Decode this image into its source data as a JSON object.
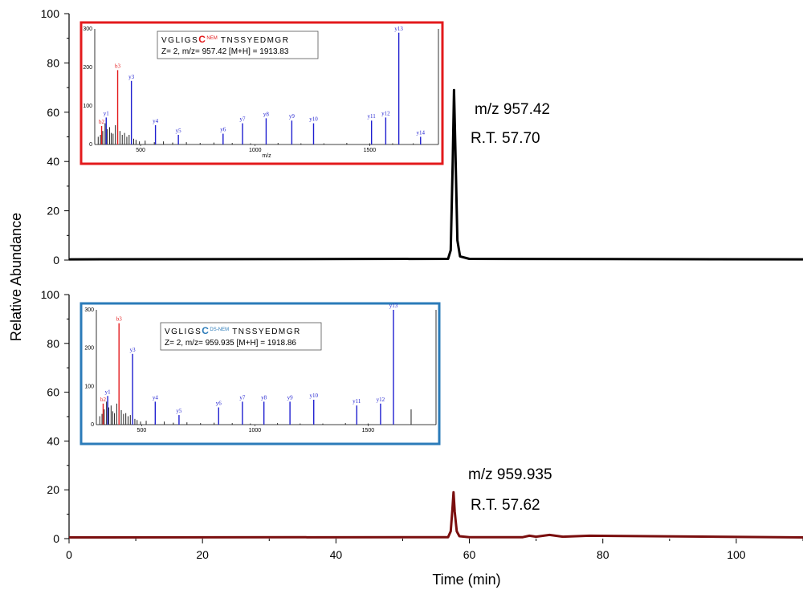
{
  "chart_data": [
    {
      "type": "line",
      "ylabel": "Relative Abundance",
      "xlabel": "",
      "xlim": [
        0,
        110
      ],
      "ylim": [
        0,
        100
      ],
      "yticks": [
        "0",
        "20",
        "40",
        "60",
        "80",
        "100"
      ],
      "xticks": [],
      "grid": false,
      "series": [
        {
          "color": "#000000",
          "x": [
            0,
            56.8,
            57.2,
            57.5,
            57.7,
            57.9,
            58.2,
            58.6,
            60,
            110
          ],
          "y": [
            0.3,
            0.5,
            4,
            40,
            69,
            45,
            8,
            1.5,
            0.5,
            0.3
          ]
        }
      ],
      "annotations": [
        "m/z 957.42",
        "R.T. 57.70"
      ],
      "inset": {
        "type": "bar",
        "frame_color": "#e31a1c",
        "peptide": "VGLIGS",
        "modified_residue": "C",
        "modification": "NEM",
        "peptide_rest": "TNSSYEDMGR",
        "info": "Z= 2, m/z= 957.42 [M+H] = 1913.83",
        "xlabel": "m/z",
        "yticks": [
          "0",
          "100",
          "200",
          "300"
        ],
        "xticks": [
          "500",
          "1000",
          "1500"
        ],
        "ylim": [
          0,
          300
        ],
        "xlim": [
          300,
          1800
        ],
        "ions": [
          {
            "label": "b2",
            "mz": 330,
            "intensity": 48,
            "color": "#e31a1c"
          },
          {
            "label": "y1",
            "mz": 350,
            "intensity": 70,
            "color": "#1f1fd0"
          },
          {
            "label": "b3",
            "mz": 400,
            "intensity": 193,
            "color": "#e31a1c"
          },
          {
            "label": "y3",
            "mz": 460,
            "intensity": 165,
            "color": "#1f1fd0"
          },
          {
            "label": "y4",
            "mz": 565,
            "intensity": 50,
            "color": "#1f1fd0"
          },
          {
            "label": "y5",
            "mz": 665,
            "intensity": 25,
            "color": "#1f1fd0"
          },
          {
            "label": "y6",
            "mz": 860,
            "intensity": 28,
            "color": "#1f1fd0"
          },
          {
            "label": "y7",
            "mz": 945,
            "intensity": 55,
            "color": "#1f1fd0"
          },
          {
            "label": "y8",
            "mz": 1048,
            "intensity": 68,
            "color": "#1f1fd0"
          },
          {
            "label": "y9",
            "mz": 1160,
            "intensity": 62,
            "color": "#1f1fd0"
          },
          {
            "label": "y10",
            "mz": 1255,
            "intensity": 55,
            "color": "#1f1fd0"
          },
          {
            "label": "y11",
            "mz": 1508,
            "intensity": 62,
            "color": "#1f1fd0"
          },
          {
            "label": "y12",
            "mz": 1570,
            "intensity": 70,
            "color": "#1f1fd0"
          },
          {
            "label": "y13",
            "mz": 1627,
            "intensity": 290,
            "color": "#1f1fd0"
          },
          {
            "label": "y14",
            "mz": 1722,
            "intensity": 20,
            "color": "#1f1fd0"
          }
        ],
        "background": [
          [
            315,
            20
          ],
          [
            325,
            25
          ],
          [
            335,
            35
          ],
          [
            345,
            55
          ],
          [
            355,
            40
          ],
          [
            365,
            45
          ],
          [
            372,
            30
          ],
          [
            380,
            28
          ],
          [
            390,
            50
          ],
          [
            410,
            35
          ],
          [
            420,
            25
          ],
          [
            430,
            30
          ],
          [
            440,
            20
          ],
          [
            450,
            25
          ],
          [
            470,
            15
          ],
          [
            480,
            12
          ],
          [
            495,
            8
          ],
          [
            520,
            10
          ],
          [
            560,
            6
          ],
          [
            600,
            8
          ],
          [
            640,
            5
          ],
          [
            700,
            6
          ],
          [
            760,
            4
          ],
          [
            820,
            5
          ],
          [
            900,
            4
          ],
          [
            980,
            3
          ],
          [
            1100,
            4
          ],
          [
            1200,
            3
          ],
          [
            1300,
            3
          ],
          [
            1400,
            4
          ],
          [
            1500,
            3
          ],
          [
            1600,
            3
          ],
          [
            1690,
            3
          ]
        ]
      }
    },
    {
      "type": "line",
      "ylabel": "",
      "xlabel": "Time (min)",
      "xlim": [
        0,
        110
      ],
      "ylim": [
        0,
        100
      ],
      "yticks": [
        "0",
        "20",
        "40",
        "60",
        "80",
        "100"
      ],
      "xticks": [
        "0",
        "20",
        "40",
        "60",
        "80",
        "100"
      ],
      "grid": false,
      "series": [
        {
          "color": "#7a0e0e",
          "x": [
            0,
            56.8,
            57.2,
            57.45,
            57.62,
            57.8,
            58.1,
            58.5,
            60,
            68,
            69,
            70,
            72,
            74,
            76,
            78,
            110
          ],
          "y": [
            0.5,
            0.6,
            3,
            12,
            19,
            11,
            3,
            1,
            0.6,
            0.6,
            1.2,
            0.8,
            1.5,
            0.8,
            1.0,
            1.2,
            0.5
          ]
        }
      ],
      "annotations": [
        "m/z 959.935",
        "R.T. 57.62"
      ],
      "inset": {
        "type": "bar",
        "frame_color": "#2b7bb9",
        "peptide": "VGLIGS",
        "modified_residue": "C",
        "modification": "DS-NEM",
        "peptide_rest": "TNSSYEDMGR",
        "info": "Z= 2, m/z= 959.935 [M+H] = 1918.86",
        "xlabel": "",
        "yticks": [
          "0",
          "100",
          "200",
          "300"
        ],
        "xticks": [
          "500",
          "1000",
          "1500"
        ],
        "ylim": [
          0,
          300
        ],
        "xlim": [
          300,
          1800
        ],
        "ions": [
          {
            "label": "b2",
            "mz": 330,
            "intensity": 55,
            "color": "#e31a1c"
          },
          {
            "label": "y1",
            "mz": 350,
            "intensity": 75,
            "color": "#1f1fd0"
          },
          {
            "label": "b3",
            "mz": 400,
            "intensity": 265,
            "color": "#e31a1c"
          },
          {
            "label": "y3",
            "mz": 460,
            "intensity": 185,
            "color": "#1f1fd0"
          },
          {
            "label": "y4",
            "mz": 560,
            "intensity": 60,
            "color": "#1f1fd0"
          },
          {
            "label": "y5",
            "mz": 665,
            "intensity": 25,
            "color": "#1f1fd0"
          },
          {
            "label": "y6",
            "mz": 840,
            "intensity": 45,
            "color": "#1f1fd0"
          },
          {
            "label": "y7",
            "mz": 945,
            "intensity": 60,
            "color": "#1f1fd0"
          },
          {
            "label": "y8",
            "mz": 1040,
            "intensity": 60,
            "color": "#1f1fd0"
          },
          {
            "label": "y9",
            "mz": 1155,
            "intensity": 60,
            "color": "#1f1fd0"
          },
          {
            "label": "y10",
            "mz": 1260,
            "intensity": 65,
            "color": "#1f1fd0"
          },
          {
            "label": "y11",
            "mz": 1450,
            "intensity": 50,
            "color": "#1f1fd0"
          },
          {
            "label": "y12",
            "mz": 1555,
            "intensity": 55,
            "color": "#1f1fd0"
          },
          {
            "label": "y13",
            "mz": 1612,
            "intensity": 300,
            "color": "#1f1fd0"
          }
        ],
        "background": [
          [
            315,
            22
          ],
          [
            325,
            28
          ],
          [
            335,
            40
          ],
          [
            345,
            60
          ],
          [
            355,
            45
          ],
          [
            365,
            50
          ],
          [
            372,
            35
          ],
          [
            380,
            30
          ],
          [
            390,
            55
          ],
          [
            410,
            38
          ],
          [
            420,
            28
          ],
          [
            430,
            30
          ],
          [
            440,
            22
          ],
          [
            450,
            25
          ],
          [
            470,
            15
          ],
          [
            480,
            12
          ],
          [
            495,
            8
          ],
          [
            520,
            10
          ],
          [
            560,
            6
          ],
          [
            600,
            8
          ],
          [
            640,
            5
          ],
          [
            700,
            6
          ],
          [
            760,
            4
          ],
          [
            820,
            5
          ],
          [
            900,
            4
          ],
          [
            980,
            3
          ],
          [
            1100,
            4
          ],
          [
            1200,
            3
          ],
          [
            1300,
            3
          ],
          [
            1400,
            4
          ],
          [
            1500,
            3
          ],
          [
            1690,
            40
          ]
        ]
      }
    }
  ]
}
